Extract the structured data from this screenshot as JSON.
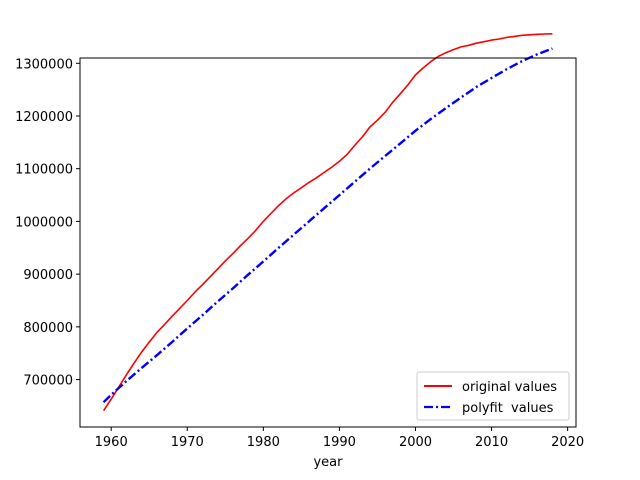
{
  "chart_data": {
    "type": "line",
    "title": "",
    "xlabel": "year",
    "ylabel": "",
    "xlim": [
      1955.9,
      2021.1
    ],
    "ylim": [
      610000,
      1310000
    ],
    "xticks": [
      1960,
      1970,
      1980,
      1990,
      2000,
      2010,
      2020
    ],
    "yticks": [
      700000,
      800000,
      900000,
      1000000,
      1100000,
      1200000,
      1300000
    ],
    "grid": false,
    "legend_position": "lower-right",
    "series": [
      {
        "name": "original values",
        "color": "#ff0000",
        "style": "solid",
        "x": [
          1959,
          1960,
          1961,
          1962,
          1963,
          1964,
          1965,
          1966,
          1967,
          1968,
          1969,
          1970,
          1971,
          1972,
          1973,
          1974,
          1975,
          1976,
          1977,
          1978,
          1979,
          1980,
          1981,
          1982,
          1983,
          1984,
          1985,
          1986,
          1987,
          1988,
          1989,
          1990,
          1991,
          1992,
          1993,
          1994,
          1995,
          1996,
          1997,
          1998,
          1999,
          2000,
          2001,
          2002,
          2003,
          2004,
          2005,
          2006,
          2007,
          2008,
          2009,
          2010,
          2011,
          2012,
          2013,
          2014,
          2015,
          2016,
          2017,
          2018
        ],
        "y": [
          641000,
          663000,
          686000,
          709000,
          731000,
          752000,
          771000,
          789000,
          804000,
          820000,
          835000,
          850000,
          866000,
          880000,
          895000,
          910000,
          925000,
          939000,
          954000,
          968000,
          983000,
          1000000,
          1015000,
          1030000,
          1043000,
          1054000,
          1064000,
          1074000,
          1083000,
          1093000,
          1103000,
          1114000,
          1127000,
          1144000,
          1160000,
          1179000,
          1192000,
          1207000,
          1226000,
          1242000,
          1259000,
          1278000,
          1291000,
          1303000,
          1313000,
          1320000,
          1326000,
          1331000,
          1334000,
          1338000,
          1341000,
          1344000,
          1346000,
          1349000,
          1351000,
          1353000,
          1354000,
          1355000,
          1355500,
          1356000
        ]
      },
      {
        "name": "polyfit  values",
        "color": "#0000ff",
        "style": "dashdot",
        "x": [
          1959,
          1960,
          1962,
          1964,
          1966,
          1968,
          1970,
          1972,
          1974,
          1976,
          1978,
          1980,
          1982,
          1984,
          1986,
          1988,
          1990,
          1992,
          1994,
          1996,
          1998,
          2000,
          2002,
          2004,
          2006,
          2008,
          2010,
          2012,
          2014,
          2016,
          2018
        ],
        "y": [
          657000,
          671000,
          697000,
          722000,
          746000,
          771000,
          797000,
          822000,
          848000,
          873000,
          899000,
          924000,
          950000,
          975000,
          1000000,
          1025000,
          1050000,
          1075000,
          1100000,
          1124000,
          1148000,
          1172000,
          1194000,
          1215000,
          1235000,
          1255000,
          1272000,
          1289000,
          1304000,
          1317000,
          1328000
        ]
      }
    ]
  }
}
